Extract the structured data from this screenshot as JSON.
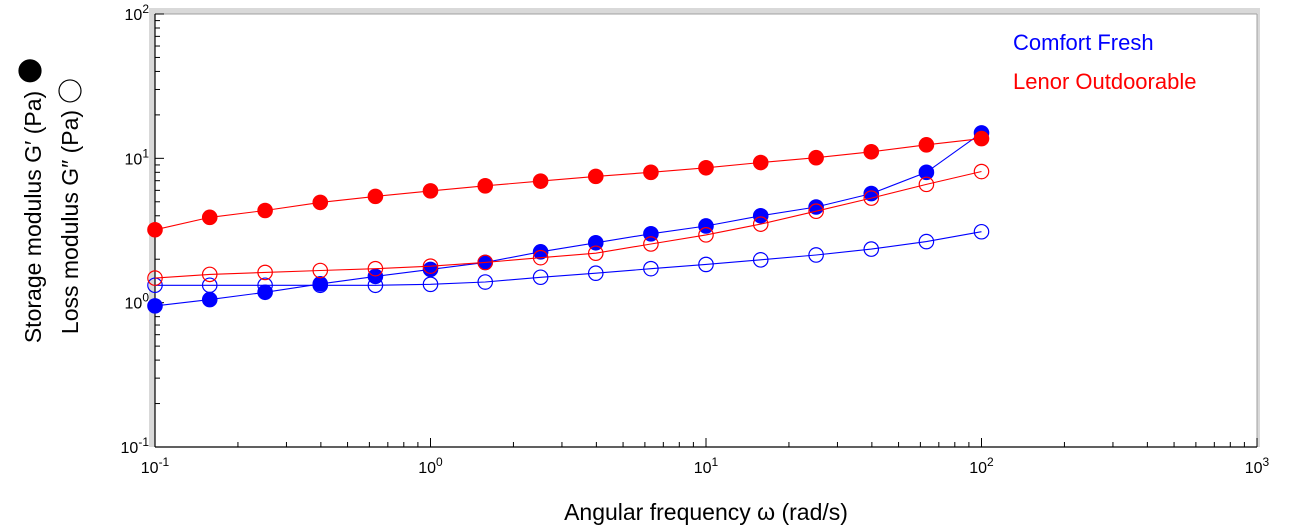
{
  "chart_data": {
    "type": "scatter",
    "xlabel": "Angular frequency  ω  (rad/s)",
    "ylabel_storage": "Storage modulus  G′  (Pa)",
    "ylabel_loss": "Loss modulus  G″  (Pa)",
    "x_scale": "log",
    "y_scale": "log",
    "xlim": [
      0.1,
      1000
    ],
    "ylim": [
      0.1,
      100
    ],
    "x_ticks": [
      {
        "value": 0.1,
        "base": "10",
        "exp": "-1"
      },
      {
        "value": 1,
        "base": "10",
        "exp": "0"
      },
      {
        "value": 10,
        "base": "10",
        "exp": "1"
      },
      {
        "value": 100,
        "base": "10",
        "exp": "2"
      },
      {
        "value": 1000,
        "base": "10",
        "exp": "3"
      }
    ],
    "y_ticks": [
      {
        "value": 0.1,
        "base": "10",
        "exp": "-1"
      },
      {
        "value": 1,
        "base": "10",
        "exp": "0"
      },
      {
        "value": 10,
        "base": "10",
        "exp": "1"
      },
      {
        "value": 100,
        "base": "10",
        "exp": "2"
      }
    ],
    "grid": false,
    "legend_position": "top-right",
    "x": [
      0.1,
      0.158,
      0.251,
      0.398,
      0.631,
      1.0,
      1.58,
      2.51,
      3.98,
      6.31,
      10.0,
      15.8,
      25.1,
      39.8,
      63.1,
      100.0
    ],
    "series": [
      {
        "name": "Comfort Fresh",
        "color": "#0000ff",
        "storage_modulus": [
          0.95,
          1.05,
          1.18,
          1.35,
          1.52,
          1.7,
          1.9,
          2.25,
          2.6,
          3.0,
          3.4,
          4.0,
          4.6,
          5.7,
          8.0,
          15.0
        ],
        "loss_modulus": [
          1.32,
          1.32,
          1.32,
          1.32,
          1.32,
          1.34,
          1.39,
          1.5,
          1.6,
          1.72,
          1.84,
          1.98,
          2.14,
          2.35,
          2.65,
          3.1
        ]
      },
      {
        "name": "Lenor Outdoorable",
        "color": "#ff0000",
        "storage_modulus": [
          3.2,
          3.9,
          4.35,
          4.95,
          5.45,
          5.95,
          6.45,
          6.95,
          7.5,
          8.0,
          8.6,
          9.35,
          10.1,
          11.1,
          12.4,
          13.7
        ],
        "loss_modulus": [
          1.48,
          1.57,
          1.62,
          1.67,
          1.72,
          1.79,
          1.9,
          2.05,
          2.2,
          2.55,
          2.95,
          3.5,
          4.3,
          5.3,
          6.6,
          8.1
        ]
      }
    ]
  }
}
